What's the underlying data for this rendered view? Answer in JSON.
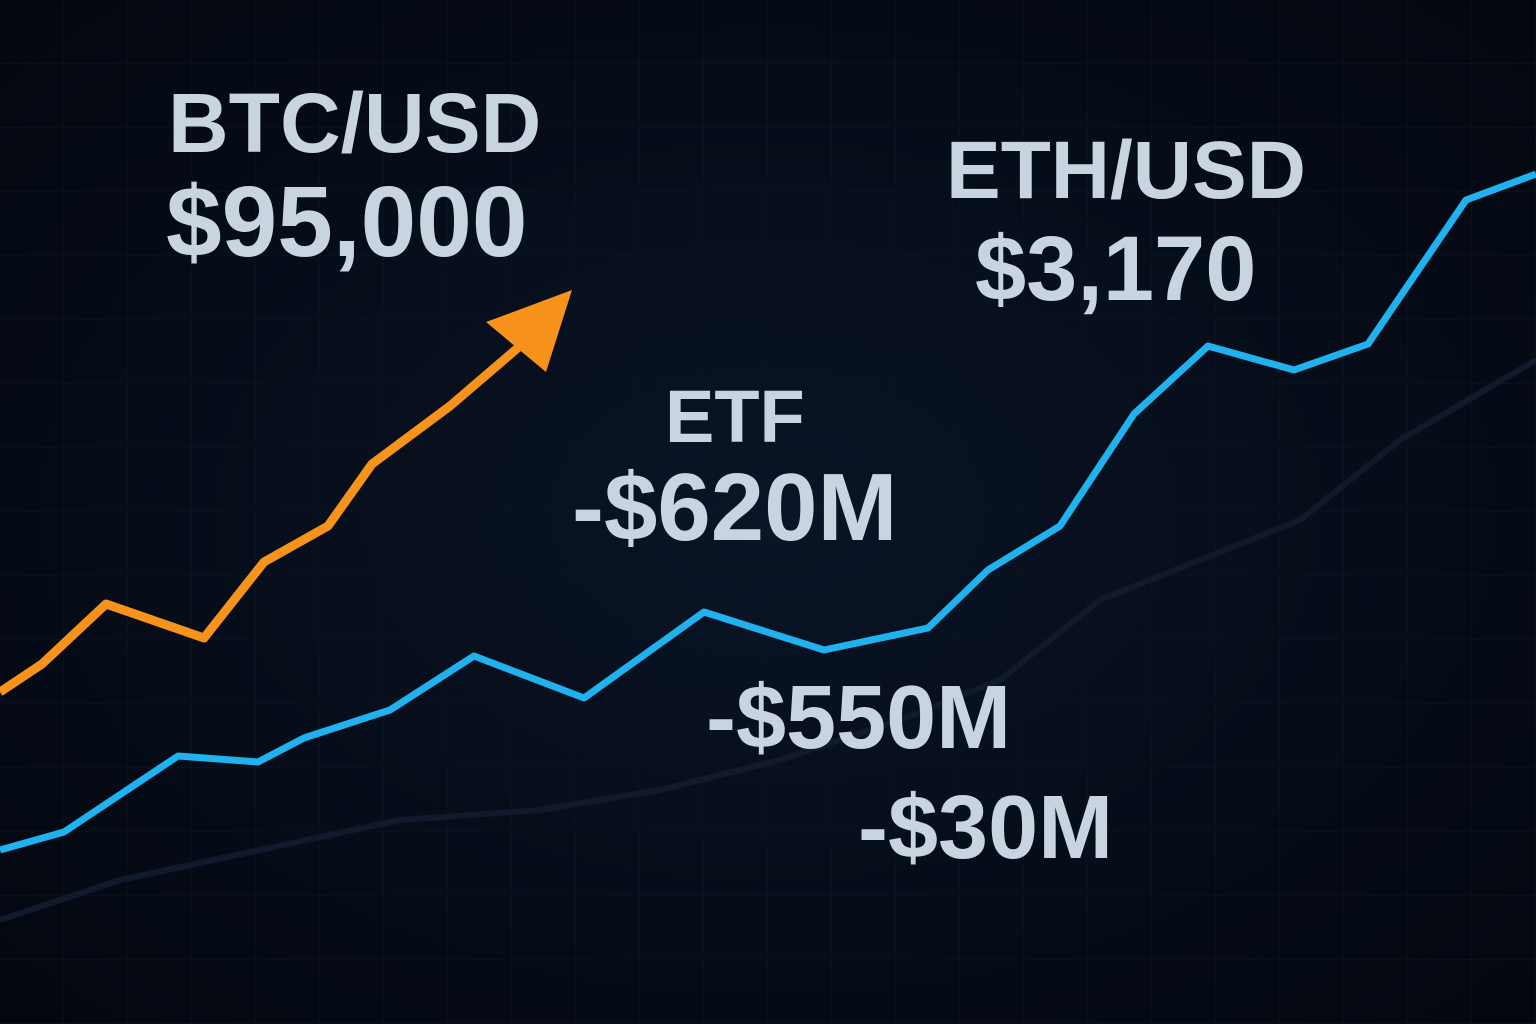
{
  "labels": {
    "btc_pair": "BTC/USD",
    "btc_price": "$95,000",
    "eth_pair": "ETH/USD",
    "eth_price": "$3,170",
    "etf_title": "ETF",
    "etf_flow_1": "-$620M",
    "etf_flow_2": "-$550M",
    "etf_flow_3": "-$30M"
  }
}
